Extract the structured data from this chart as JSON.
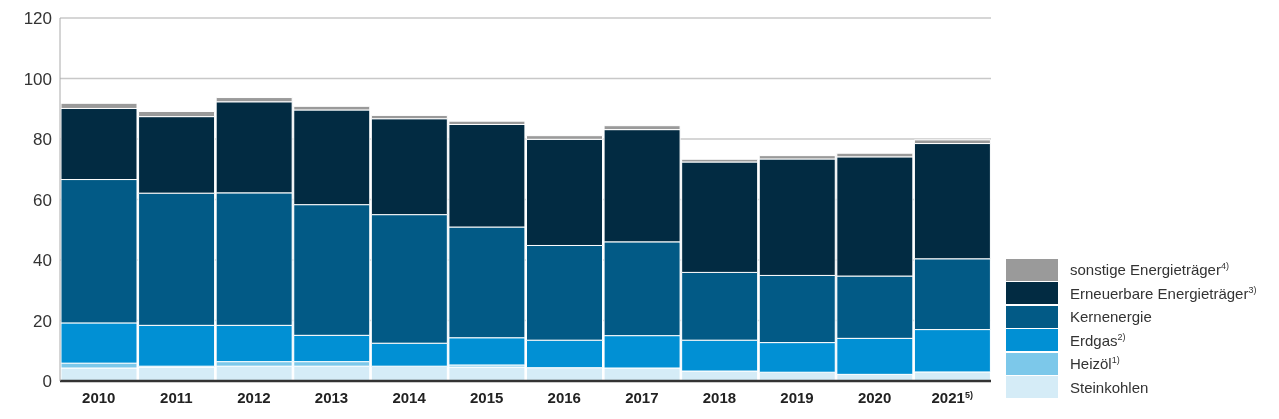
{
  "chart_data": {
    "type": "bar",
    "stacked": true,
    "categories": [
      "2010",
      "2011",
      "2012",
      "2013",
      "2014",
      "2015",
      "2016",
      "2017",
      "2018",
      "2019",
      "2020",
      "2021$^{5)}$"
    ],
    "series": [
      {
        "name": "Steinkohlen",
        "color": "#d5ecf7",
        "values": [
          4.3,
          4.6,
          4.9,
          4.9,
          4.9,
          4.6,
          4.4,
          4.3,
          3.3,
          2.9,
          2.2,
          3.0
        ]
      },
      {
        "name": "Heizöl$^{1)}$",
        "color": "#7cc8ea",
        "values": [
          1.6,
          0.3,
          1.5,
          1.5,
          null,
          0.7,
          null,
          null,
          null,
          null,
          null,
          null
        ]
      },
      {
        "name": "Erdgas$^{2)}$",
        "color": "#0190d4",
        "values": [
          13.3,
          13.5,
          12.0,
          8.7,
          7.6,
          9.0,
          9.1,
          10.7,
          10.2,
          9.8,
          11.9,
          14.0
        ]
      },
      {
        "name": "Kernenergie",
        "color": "#025a86",
        "values": [
          47.4,
          43.7,
          43.8,
          43.2,
          42.5,
          36.6,
          31.3,
          31.0,
          22.4,
          22.2,
          20.6,
          23.4
        ]
      },
      {
        "name": "Erneuerbare Energieträger$^{3)}$",
        "color": "#022b42",
        "values": [
          23.5,
          25.3,
          30.1,
          31.3,
          31.7,
          33.9,
          35.1,
          37.1,
          36.5,
          38.5,
          39.4,
          38.1
        ]
      },
      {
        "name": "sonstige Energieträger$^{4)}$",
        "color": "#9a9a9a",
        "values": [
          1.7,
          1.7,
          1.4,
          1.2,
          1.1,
          1.1,
          1.2,
          1.3,
          0.9,
          1.1,
          1.2,
          1.2
        ]
      }
    ],
    "ylim": [
      0,
      120
    ],
    "yticks": [
      0,
      20,
      40,
      60,
      80,
      100,
      120
    ],
    "grid": "y",
    "legend": "bottom right"
  }
}
